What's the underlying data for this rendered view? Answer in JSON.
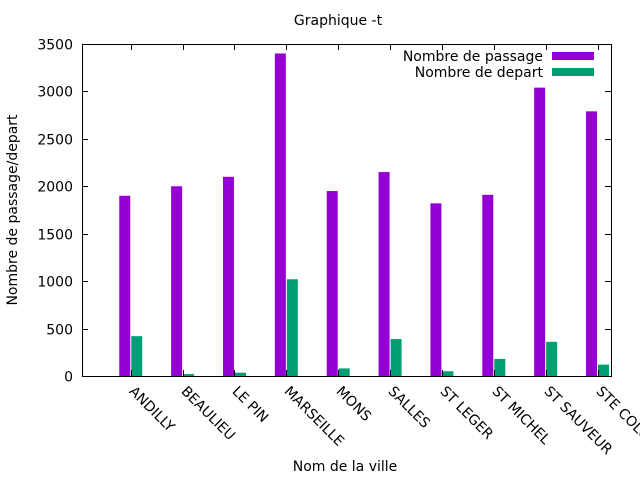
{
  "chart_data": {
    "type": "bar",
    "title": "Graphique -t",
    "xlabel": "Nom de la ville",
    "ylabel": "Nombre de passage/depart",
    "ylim": [
      0,
      3500
    ],
    "yticks": [
      0,
      500,
      1000,
      1500,
      2000,
      2500,
      3000,
      3500
    ],
    "grid": false,
    "legend_position": "top-right",
    "categories": [
      "ANDILLY",
      "BEAULIEU",
      "LE PIN",
      "MARSEILLE",
      "MONS",
      "SALLES",
      "ST LEGER",
      "ST MICHEL",
      "ST SAUVEUR",
      "STE COLOMBE"
    ],
    "series": [
      {
        "name": "Nombre de passage",
        "color": "#9400d3",
        "values": [
          1900,
          2000,
          2100,
          3400,
          1950,
          2150,
          1820,
          1910,
          3040,
          2790
        ]
      },
      {
        "name": "Nombre de depart",
        "color": "#009e73",
        "values": [
          420,
          20,
          35,
          1020,
          80,
          390,
          50,
          180,
          360,
          120
        ]
      }
    ]
  }
}
